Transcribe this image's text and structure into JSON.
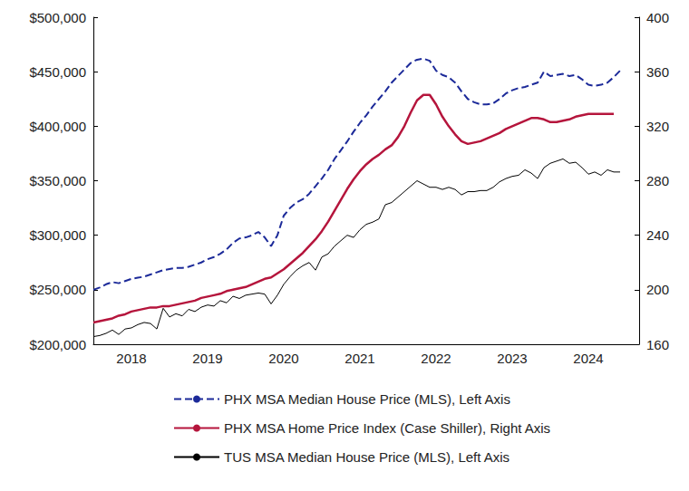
{
  "chart_data": {
    "type": "line",
    "categories": [
      null,
      null,
      null,
      null,
      null,
      null,
      "2018",
      null,
      null,
      null,
      null,
      null,
      null,
      null,
      null,
      null,
      null,
      null,
      "2019",
      null,
      null,
      null,
      null,
      null,
      null,
      null,
      null,
      null,
      null,
      null,
      "2020",
      null,
      null,
      null,
      null,
      null,
      null,
      null,
      null,
      null,
      null,
      null,
      "2021",
      null,
      null,
      null,
      null,
      null,
      null,
      null,
      null,
      null,
      null,
      null,
      "2022",
      null,
      null,
      null,
      null,
      null,
      null,
      null,
      null,
      null,
      null,
      null,
      "2023",
      null,
      null,
      null,
      null,
      null,
      null,
      null,
      null,
      null,
      null,
      null,
      "2024",
      null,
      null,
      null,
      null,
      null,
      null,
      null,
      null
    ],
    "series": [
      {
        "name": "PHX MSA Median House Price (MLS), Left Axis",
        "color": "#1c2a99",
        "line_style": "dashed",
        "axis": "y",
        "values": [
          250000,
          252000,
          255000,
          257000,
          256000,
          258000,
          260000,
          261000,
          262000,
          264000,
          266000,
          268000,
          269000,
          270000,
          270000,
          271000,
          273000,
          275000,
          278000,
          280000,
          283000,
          287000,
          293000,
          297000,
          298000,
          300000,
          303000,
          298000,
          290000,
          300000,
          318000,
          325000,
          330000,
          333000,
          338000,
          345000,
          352000,
          360000,
          370000,
          378000,
          386000,
          395000,
          403000,
          410000,
          418000,
          425000,
          432000,
          440000,
          446000,
          452000,
          458000,
          461000,
          462000,
          460000,
          451000,
          447000,
          445000,
          440000,
          432000,
          425000,
          422000,
          420000,
          420000,
          421000,
          425000,
          430000,
          433000,
          435000,
          436000,
          438000,
          440000,
          450000,
          446000,
          447000,
          448000,
          446000,
          447000,
          443000,
          438000,
          437000,
          438000,
          440000,
          445000,
          451000,
          null,
          null,
          null
        ]
      },
      {
        "name": "PHX MSA Home Price Index (Case Shiller), Right Axis",
        "color": "#b5153c",
        "line_style": "solid",
        "axis": "y2",
        "values": [
          176,
          177,
          178,
          179,
          181,
          182,
          184,
          185,
          186,
          187,
          187,
          188,
          188,
          189,
          190,
          191,
          192,
          194,
          195,
          196,
          197,
          199,
          200,
          201,
          202,
          204,
          206,
          208,
          209,
          212,
          215,
          219,
          223,
          227,
          232,
          237,
          243,
          250,
          258,
          266,
          274,
          281,
          287,
          292,
          296,
          299,
          303,
          306,
          312,
          320,
          330,
          339,
          343,
          343,
          336,
          327,
          320,
          314,
          309,
          307,
          308,
          309,
          311,
          313,
          315,
          318,
          320,
          322,
          324,
          326,
          326,
          325,
          323,
          323,
          324,
          325,
          327,
          328,
          329,
          329,
          329,
          329,
          329,
          null,
          null,
          null,
          null
        ]
      },
      {
        "name": "TUS MSA Median House Price (MLS), Left Axis",
        "color": "#000000",
        "line_style": "solid",
        "axis": "y",
        "values": [
          207000,
          208000,
          210000,
          213000,
          209000,
          214000,
          215000,
          218000,
          220000,
          219000,
          214000,
          233000,
          225000,
          228000,
          226000,
          232000,
          230000,
          234000,
          236000,
          235000,
          240000,
          238000,
          244000,
          242000,
          245000,
          246000,
          247000,
          246000,
          237000,
          245000,
          255000,
          262000,
          268000,
          272000,
          275000,
          268000,
          280000,
          283000,
          290000,
          295000,
          300000,
          298000,
          305000,
          310000,
          312000,
          315000,
          328000,
          330000,
          335000,
          340000,
          345000,
          350000,
          347000,
          344000,
          344000,
          342000,
          344000,
          342000,
          337000,
          340000,
          340000,
          341000,
          341000,
          344000,
          349000,
          352000,
          354000,
          355000,
          360000,
          357000,
          352000,
          362000,
          366000,
          368000,
          370000,
          366000,
          367000,
          362000,
          356000,
          358000,
          355000,
          360000,
          358000,
          358000,
          null,
          null,
          null
        ]
      }
    ],
    "ylim": [
      200000,
      500000
    ],
    "yticks": [
      {
        "value": 200000,
        "label": "$200,000"
      },
      {
        "value": 250000,
        "label": "$250,000"
      },
      {
        "value": 300000,
        "label": "$300,000"
      },
      {
        "value": 350000,
        "label": "$350,000"
      },
      {
        "value": 400000,
        "label": "$400,000"
      },
      {
        "value": 450000,
        "label": "$450,000"
      },
      {
        "value": 500000,
        "label": "$500,000"
      }
    ],
    "y2lim": [
      160,
      400
    ],
    "y2ticks": [
      160,
      200,
      240,
      280,
      320,
      360,
      400
    ],
    "grid": false,
    "legend": "bottom"
  }
}
